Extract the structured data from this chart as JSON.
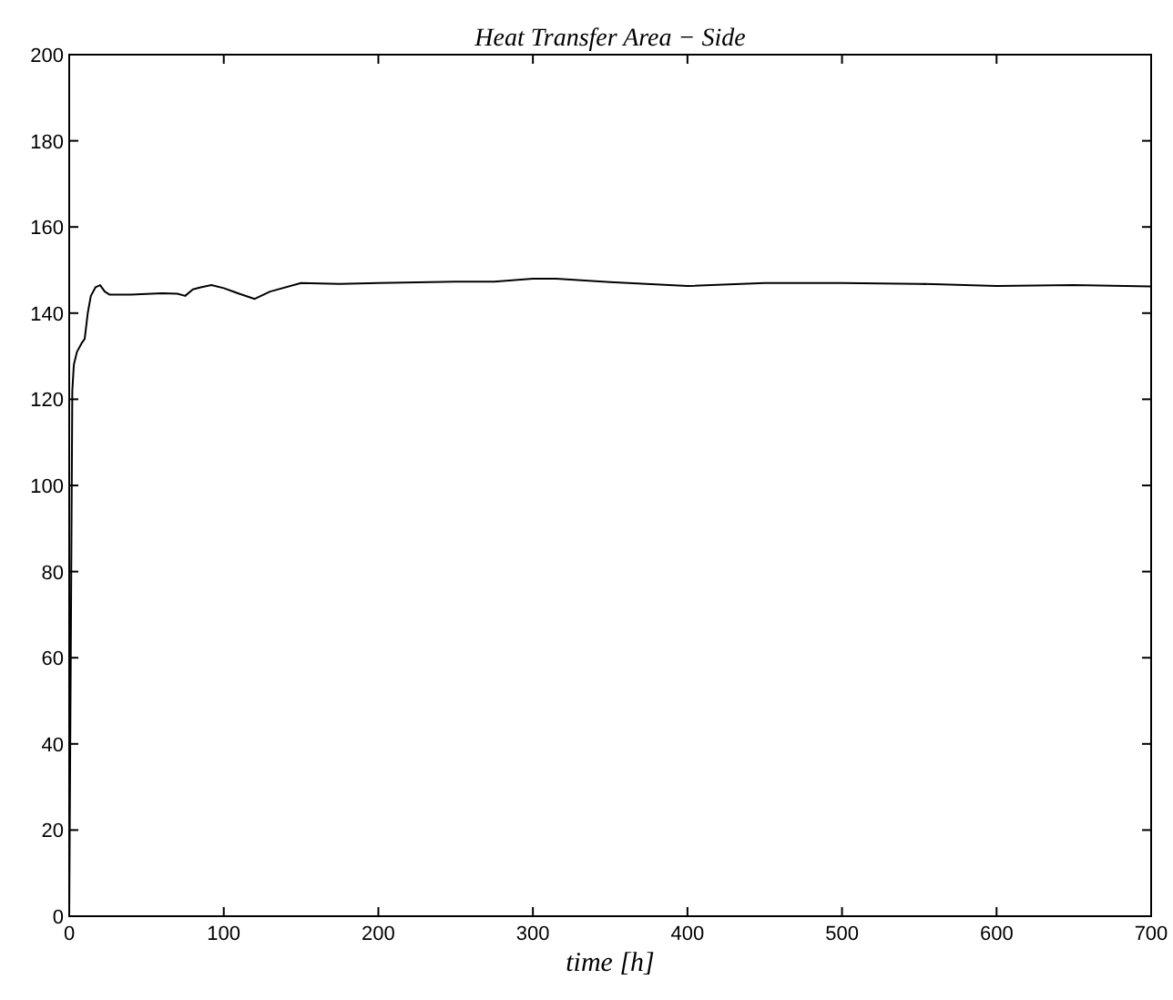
{
  "chart_data": {
    "type": "line",
    "title": "Heat Transfer Area − Side",
    "xlabel": "time [h]",
    "x": [
      0,
      1,
      2,
      3,
      5,
      8,
      10,
      12,
      14,
      17,
      20,
      23,
      26,
      40,
      60,
      70,
      75,
      80,
      85,
      92,
      100,
      110,
      120,
      130,
      150,
      175,
      200,
      250,
      275,
      300,
      315,
      350,
      400,
      450,
      500,
      550,
      600,
      650,
      700
    ],
    "series": [
      {
        "color": "#000000",
        "values": [
          0,
          60,
          122,
          128,
          131,
          133,
          134,
          140,
          144,
          146,
          146.5,
          145,
          144.3,
          144.3,
          144.6,
          144.5,
          144,
          145.5,
          146,
          146.5,
          145.8,
          144.5,
          143.3,
          145,
          147,
          146.8,
          147,
          147.3,
          147.3,
          148,
          148,
          147.2,
          146.3,
          147,
          147,
          146.8,
          146.3,
          146.5,
          146.2
        ]
      }
    ],
    "xlim": [
      0,
      700
    ],
    "ylim": [
      0,
      200
    ],
    "xticks": [
      0,
      100,
      200,
      300,
      400,
      500,
      600,
      700
    ],
    "yticks": [
      0,
      20,
      40,
      60,
      80,
      100,
      120,
      140,
      160,
      180,
      200
    ],
    "grid": false
  }
}
